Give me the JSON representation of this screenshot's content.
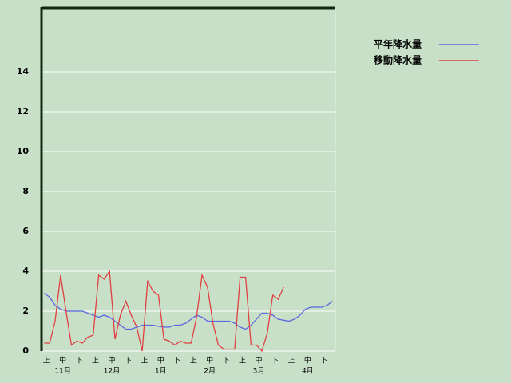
{
  "chart_data": {
    "type": "line",
    "categories": [
      null,
      "上",
      null,
      null,
      "中",
      null,
      null,
      "下",
      null,
      null,
      "上",
      null,
      null,
      "中",
      null,
      null,
      "下",
      null,
      null,
      "上",
      null,
      null,
      "中",
      null,
      null,
      "下",
      null,
      null,
      "上",
      null,
      null,
      "中",
      null,
      null,
      "下",
      null,
      null,
      "上",
      null,
      null,
      "中",
      null,
      null,
      "下",
      null,
      null,
      "上",
      null,
      null,
      "中",
      null,
      null,
      "下",
      null
    ],
    "month_labels": [
      "11月",
      "12月",
      "1月",
      "2月",
      "3月",
      "4月"
    ],
    "series": [
      {
        "name": "平年降水量",
        "color": "#5a6ae0",
        "values": [
          2.9,
          2.7,
          2.3,
          2.1,
          2.0,
          2.0,
          2.0,
          2.0,
          1.9,
          1.8,
          1.7,
          1.8,
          1.7,
          1.5,
          1.3,
          1.1,
          1.1,
          1.2,
          1.3,
          1.3,
          1.3,
          1.25,
          1.2,
          1.2,
          1.3,
          1.3,
          1.4,
          1.6,
          1.8,
          1.7,
          1.5,
          1.5,
          1.5,
          1.5,
          1.5,
          1.4,
          1.2,
          1.1,
          1.3,
          1.6,
          1.9,
          1.9,
          1.8,
          1.6,
          1.55,
          1.5,
          1.6,
          1.8,
          2.1,
          2.2,
          2.2,
          2.2,
          2.3,
          2.5
        ]
      },
      {
        "name": "移動降水量",
        "color": "#e04040",
        "values": [
          0.4,
          0.4,
          1.5,
          3.8,
          2.0,
          0.3,
          0.5,
          0.4,
          0.7,
          0.8,
          3.8,
          3.6,
          4.0,
          0.6,
          1.8,
          2.5,
          1.8,
          1.2,
          0,
          3.5,
          3.0,
          2.8,
          0.6,
          0.5,
          0.3,
          0.5,
          0.4,
          0.4,
          1.7,
          3.8,
          3.2,
          1.4,
          0.3,
          0.1,
          0.1,
          0.1,
          3.7,
          3.7,
          0.3,
          0.3,
          0,
          0.9,
          2.8,
          2.6,
          3.2,
          null,
          null,
          null,
          null,
          null,
          null,
          null,
          null,
          null
        ]
      }
    ],
    "ylim": [
      0,
      17.2
    ],
    "yticks": [
      0,
      2,
      4,
      6,
      8,
      10,
      12,
      14
    ],
    "grid": true,
    "legend": "upper right"
  }
}
